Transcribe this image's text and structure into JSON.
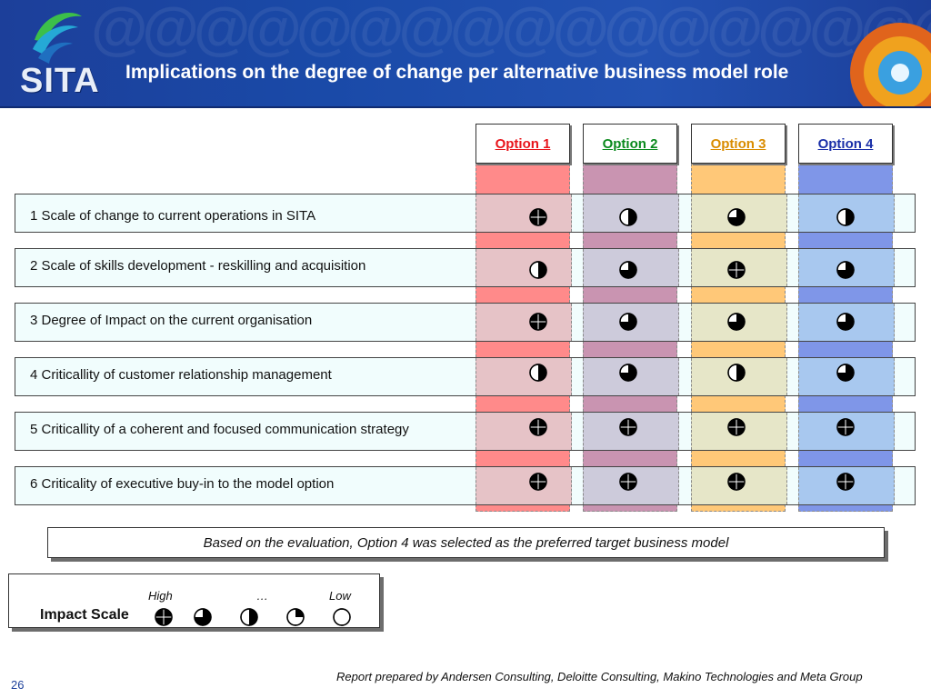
{
  "header": {
    "title": "Implications on the degree of change per alternative business model role",
    "logo_text": "SITA",
    "pattern_text": "@@@@@@@@@@@@@@@@@@"
  },
  "options": [
    {
      "label": "Option 1",
      "text_color": "#e8141b",
      "column_color": "#ff8a8a",
      "cell_color": "#e6c3c7"
    },
    {
      "label": "Option 2",
      "text_color": "#0b8a1e",
      "column_color": "#c994b1",
      "cell_color": "#cdcbdb"
    },
    {
      "label": "Option 3",
      "text_color": "#d98c00",
      "column_color": "#ffc878",
      "cell_color": "#e6e6c8"
    },
    {
      "label": "Option 4",
      "text_color": "#1a2fa8",
      "column_color": "#7f96e8",
      "cell_color": "#a8c8ef"
    }
  ],
  "rows": [
    {
      "label": "1  Scale of change to current operations in SITA",
      "ratings": [
        1.0,
        0.5,
        0.75,
        0.5
      ]
    },
    {
      "label": "2  Scale of skills development - reskilling and acquisition",
      "ratings": [
        0.5,
        0.75,
        1.0,
        0.75
      ]
    },
    {
      "label": "3  Degree of Impact on the current organisation",
      "ratings": [
        1.0,
        0.75,
        0.75,
        0.75
      ]
    },
    {
      "label": "4  Criticallity of customer relationship management",
      "ratings": [
        0.5,
        0.75,
        0.5,
        0.75
      ]
    },
    {
      "label": "5  Criticallity of a coherent and focused communication strategy",
      "ratings": [
        1.0,
        1.0,
        1.0,
        1.0
      ]
    },
    {
      "label": "6  Criticality of executive buy-in to the model option",
      "ratings": [
        1.0,
        1.0,
        1.0,
        1.0
      ]
    }
  ],
  "conclusion": "Based on the evaluation, Option 4 was selected as the preferred target business model",
  "legend": {
    "title": "Impact Scale",
    "high_label": "High",
    "mid_label": "…",
    "low_label": "Low",
    "levels": [
      1.0,
      0.75,
      0.5,
      0.25,
      0.0
    ]
  },
  "footer": "Report prepared by Andersen Consulting, Deloitte Consulting, Makino Technologies and Meta Group",
  "page_number": "26"
}
